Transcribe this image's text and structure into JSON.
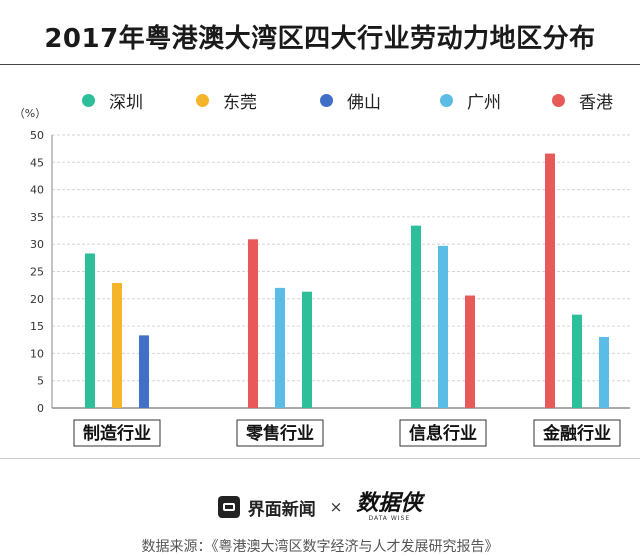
{
  "title": "2017年粤港澳大湾区四大行业劳动力地区分布",
  "legend": [
    {
      "name": "深圳",
      "color": "#2cbf9a"
    },
    {
      "name": "东莞",
      "color": "#f5b52b"
    },
    {
      "name": "佛山",
      "color": "#3f6fc6"
    },
    {
      "name": "广州",
      "color": "#5bbde6"
    },
    {
      "name": "香港",
      "color": "#e85a5a"
    }
  ],
  "footer": {
    "brand": "界面新闻",
    "times": "×",
    "partner": "数据侠",
    "partner_sub": "DATA WISE",
    "source": "数据来源：《粤港澳大湾区数字经济与人才发展研究报告》"
  },
  "chart_data": {
    "type": "bar",
    "ylabel": "（%）",
    "ylim": [
      0,
      50
    ],
    "yticks": [
      0,
      5,
      10,
      15,
      20,
      25,
      30,
      35,
      40,
      45,
      50
    ],
    "groups": [
      {
        "category": "制造行业",
        "bars": [
          {
            "series": "深圳",
            "value": 28.3
          },
          {
            "series": "东莞",
            "value": 22.9
          },
          {
            "series": "佛山",
            "value": 13.3
          }
        ]
      },
      {
        "category": "零售行业",
        "bars": [
          {
            "series": "香港",
            "value": 30.9
          },
          {
            "series": "广州",
            "value": 22.0
          },
          {
            "series": "深圳",
            "value": 21.3
          }
        ]
      },
      {
        "category": "信息行业",
        "bars": [
          {
            "series": "深圳",
            "value": 33.4
          },
          {
            "series": "广州",
            "value": 29.7
          },
          {
            "series": "香港",
            "value": 20.6
          }
        ]
      },
      {
        "category": "金融行业",
        "bars": [
          {
            "series": "香港",
            "value": 46.6
          },
          {
            "series": "深圳",
            "value": 17.1
          },
          {
            "series": "广州",
            "value": 13.0
          }
        ]
      }
    ],
    "grid": true,
    "legend_position": "top"
  }
}
